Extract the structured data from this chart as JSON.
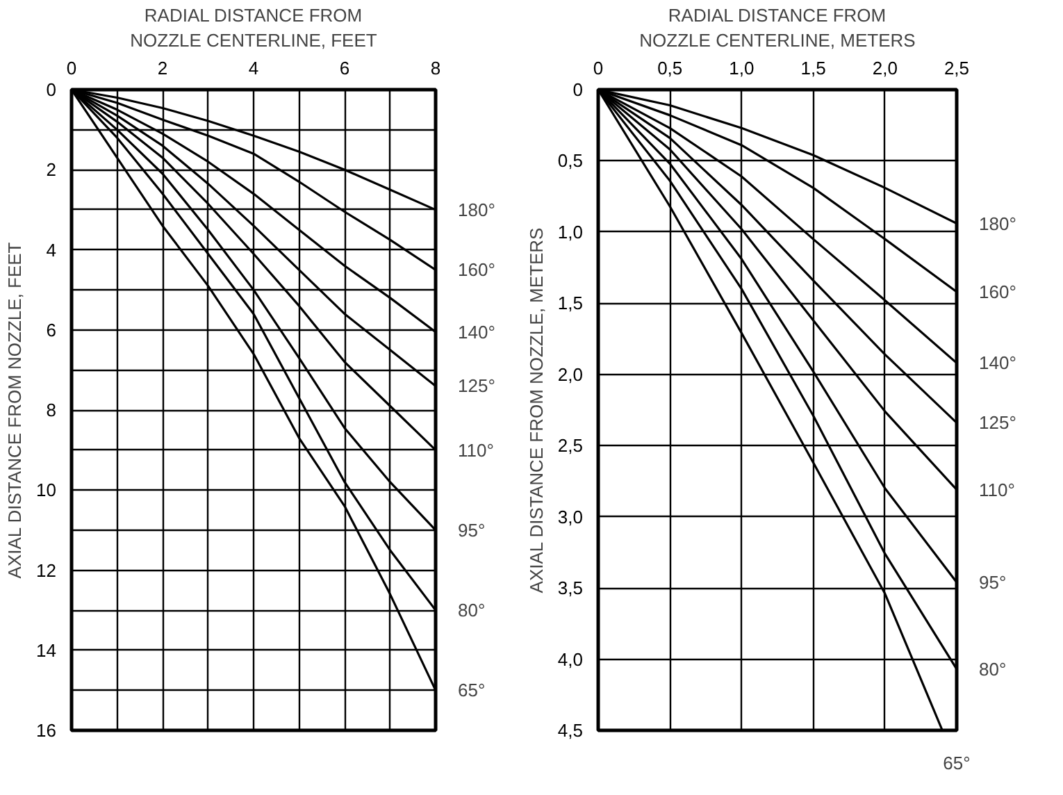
{
  "chart_data": [
    {
      "type": "line",
      "xlabel": "RADIAL DISTANCE FROM\nNOZZLE CENTERLINE, FEET",
      "ylabel": "AXIAL DISTANCE FROM NOZZLE, FEET",
      "x": [
        0,
        1,
        2,
        3,
        4,
        5,
        6,
        7,
        8
      ],
      "xlim": [
        0,
        8
      ],
      "ylim": [
        16,
        0
      ],
      "xticks": [
        0,
        {
          "value": 1,
          "label": null
        },
        2,
        {
          "value": 3,
          "label": null
        },
        4,
        {
          "value": 5,
          "label": null
        },
        6,
        {
          "value": 7,
          "label": null
        },
        8
      ],
      "yticks": [
        0,
        {
          "value": 1,
          "label": null
        },
        2,
        {
          "value": 3,
          "label": null
        },
        4,
        {
          "value": 5,
          "label": null
        },
        6,
        {
          "value": 7,
          "label": null
        },
        8,
        {
          "value": 9,
          "label": null
        },
        10,
        {
          "value": 11,
          "label": null
        },
        12,
        {
          "value": 13,
          "label": null
        },
        14,
        {
          "value": 15,
          "label": null
        },
        16
      ],
      "grid": true,
      "legend": false,
      "marker": "none",
      "line_style": "solid",
      "series": [
        {
          "name": "180°",
          "color": "#000000",
          "values": [
            0,
            0.2,
            0.46,
            0.78,
            1.15,
            1.55,
            2.0,
            2.5,
            3.0
          ]
        },
        {
          "name": "160°",
          "color": "#000000",
          "values": [
            0,
            0.33,
            0.75,
            1.15,
            1.6,
            2.3,
            3.05,
            3.75,
            4.5
          ]
        },
        {
          "name": "140°",
          "color": "#000000",
          "values": [
            0,
            0.5,
            1.1,
            1.8,
            2.6,
            3.5,
            4.4,
            5.2,
            6.05
          ]
        },
        {
          "name": "125°",
          "color": "#000000",
          "values": [
            0,
            0.65,
            1.4,
            2.35,
            3.4,
            4.5,
            5.6,
            6.5,
            7.4
          ]
        },
        {
          "name": "110°",
          "color": "#000000",
          "values": [
            0,
            0.8,
            1.7,
            2.85,
            4.1,
            5.4,
            6.8,
            7.9,
            9.0
          ]
        },
        {
          "name": "95°",
          "color": "#000000",
          "values": [
            0,
            1.0,
            2.1,
            3.5,
            5.0,
            6.7,
            8.45,
            9.8,
            11.0
          ]
        },
        {
          "name": "80°",
          "color": "#000000",
          "values": [
            0,
            1.2,
            2.6,
            4.1,
            5.6,
            7.7,
            9.8,
            11.5,
            13.0
          ]
        },
        {
          "name": "65°",
          "color": "#000000",
          "values": [
            0,
            1.7,
            3.4,
            4.9,
            6.6,
            8.7,
            10.4,
            12.6,
            15.0
          ]
        }
      ]
    },
    {
      "type": "line",
      "xlabel": "RADIAL DISTANCE FROM\nNOZZLE CENTERLINE, METERS",
      "ylabel": "AXIAL DISTANCE FROM NOZZLE, METERS",
      "x": [
        0,
        0.5,
        1,
        1.5,
        2,
        2.5
      ],
      "xlim": [
        0,
        2.5
      ],
      "ylim": [
        4.5,
        0
      ],
      "xticks": [
        0,
        {
          "value": 0.5,
          "label": "0,5"
        },
        {
          "value": 1,
          "label": "1,0"
        },
        {
          "value": 1.5,
          "label": "1,5"
        },
        {
          "value": 2,
          "label": "2,0"
        },
        {
          "value": 2.5,
          "label": "2,5"
        }
      ],
      "yticks": [
        0,
        {
          "value": 0.5,
          "label": "0,5"
        },
        {
          "value": 1,
          "label": "1,0"
        },
        {
          "value": 1.5,
          "label": "1,5"
        },
        {
          "value": 2,
          "label": "2,0"
        },
        {
          "value": 2.5,
          "label": "2,5"
        },
        {
          "value": 3,
          "label": "3,0"
        },
        {
          "value": 3.5,
          "label": "3,5"
        },
        {
          "value": 4,
          "label": "4,0"
        },
        {
          "value": 4.5,
          "label": "4,5"
        }
      ],
      "grid": true,
      "legend": false,
      "marker": "none",
      "line_style": "solid",
      "series": [
        {
          "name": "180°",
          "color": "#000000",
          "values": [
            0,
            0.11,
            0.27,
            0.46,
            0.69,
            0.94
          ]
        },
        {
          "name": "160°",
          "color": "#000000",
          "values": [
            0,
            0.18,
            0.39,
            0.69,
            1.05,
            1.42
          ]
        },
        {
          "name": "140°",
          "color": "#000000",
          "values": [
            0,
            0.27,
            0.61,
            1.05,
            1.48,
            1.92
          ]
        },
        {
          "name": "125°",
          "color": "#000000",
          "values": [
            0,
            0.34,
            0.81,
            1.34,
            1.86,
            2.34
          ]
        },
        {
          "name": "110°",
          "color": "#000000",
          "values": [
            0,
            0.42,
            0.98,
            1.62,
            2.26,
            2.81
          ]
        },
        {
          "name": "95°",
          "color": "#000000",
          "values": [
            0,
            0.52,
            1.19,
            1.98,
            2.8,
            3.46
          ]
        },
        {
          "name": "80°",
          "color": "#000000",
          "values": [
            0,
            0.64,
            1.4,
            2.29,
            3.26,
            4.07
          ]
        },
        {
          "name": "65°",
          "color": "#000000",
          "x": [
            0,
            0.5,
            1,
            1.5,
            2,
            2.4
          ],
          "values": [
            0,
            0.82,
            1.71,
            2.62,
            3.54,
            4.5
          ]
        }
      ]
    }
  ]
}
